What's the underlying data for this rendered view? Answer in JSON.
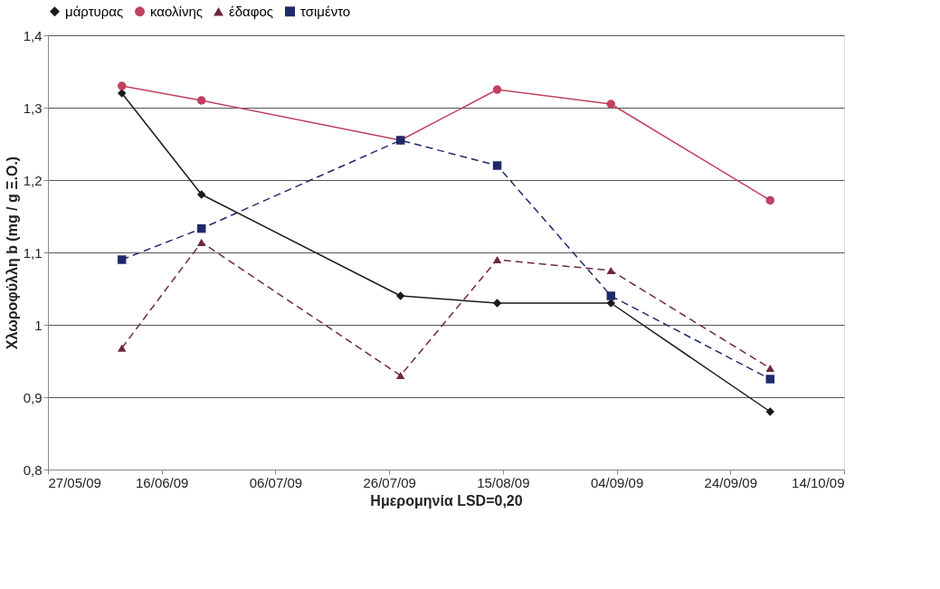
{
  "chart_data": {
    "type": "line",
    "xlabel": "Ημερομηνία LSD=0,20",
    "ylabel": "Χλωροφύλλη b (mg / g Ξ.Ο.)",
    "x": [
      "2009-06-09",
      "2009-06-23",
      "2009-07-28",
      "2009-08-14",
      "2009-09-03",
      "2009-10-01"
    ],
    "series": [
      {
        "name": "μάρτυρας",
        "color": "#1a1a1a",
        "marker": "diamond",
        "line_style": "solid",
        "values": [
          1.32,
          1.18,
          1.04,
          1.03,
          1.03,
          0.88
        ]
      },
      {
        "name": "καολίνης",
        "color": "#c0405f",
        "marker": "circle",
        "line_style": "solid",
        "values": [
          1.33,
          1.31,
          1.255,
          1.325,
          1.305,
          1.172
        ]
      },
      {
        "name": "έδαφος",
        "color": "#6e2a3a",
        "marker": "triangle",
        "line_style": "dashed",
        "values": [
          0.968,
          1.114,
          0.93,
          1.09,
          1.075,
          0.94
        ]
      },
      {
        "name": "τσιμέντο",
        "color": "#1f2a6b",
        "marker": "square",
        "line_style": "dashed",
        "values": [
          1.09,
          1.133,
          1.255,
          1.22,
          1.04,
          0.925
        ]
      }
    ],
    "xlim": [
      "2009-05-27",
      "2009-10-14"
    ],
    "xticks": [
      {
        "value": "2009-05-27",
        "label": "27/05/09"
      },
      {
        "value": "2009-06-16",
        "label": "16/06/09"
      },
      {
        "value": "2009-07-06",
        "label": "06/07/09"
      },
      {
        "value": "2009-07-26",
        "label": "26/07/09"
      },
      {
        "value": "2009-08-15",
        "label": "15/08/09"
      },
      {
        "value": "2009-09-04",
        "label": "04/09/09"
      },
      {
        "value": "2009-09-24",
        "label": "24/09/09"
      },
      {
        "value": "2009-10-14",
        "label": "14/10/09"
      }
    ],
    "ylim": [
      0.8,
      1.4
    ],
    "yticks": [
      {
        "value": 0.8,
        "label": "0,8"
      },
      {
        "value": 0.9,
        "label": "0,9"
      },
      {
        "value": 1,
        "label": "1"
      },
      {
        "value": 1.1,
        "label": "1,1"
      },
      {
        "value": 1.2,
        "label": "1,2"
      },
      {
        "value": 1.3,
        "label": "1,3"
      },
      {
        "value": 1.4,
        "label": "1,4"
      }
    ],
    "grid": "y",
    "legend": "top"
  }
}
